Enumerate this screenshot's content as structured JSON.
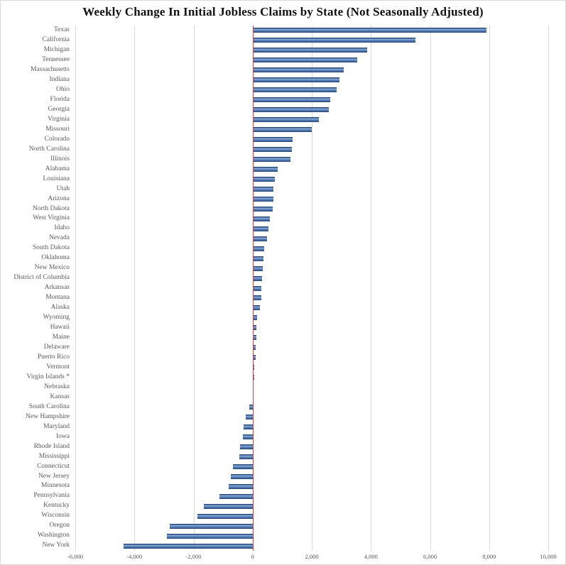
{
  "chart": {
    "title": "Weekly Change In Initial Jobless Claims by State (Not Seasonally Adjusted)"
  },
  "chart_data": {
    "type": "bar",
    "orientation": "horizontal",
    "title": "Weekly Change In Initial Jobless Claims by State (Not Seasonally Adjusted)",
    "xlabel": "",
    "ylabel": "",
    "xlim": [
      -6000,
      10000
    ],
    "x_ticks": [
      -6000,
      -4000,
      -2000,
      0,
      2000,
      4000,
      6000,
      8000,
      10000
    ],
    "x_tick_labels": [
      "-6,000",
      "-4,000",
      "-2,000",
      "0",
      "2,000",
      "4,000",
      "6,000",
      "8,000",
      "10,000"
    ],
    "grid": "vertical-gridlines-on",
    "legend": "none",
    "zero_line_color": "#e83a3a",
    "bar_fill_color": "#4f7ab8",
    "bar_edge_color": "#2c4d7d",
    "gridline_color": "#d9d9d9",
    "label_color": "#595959",
    "categories": [
      "Texas",
      "California",
      "Michigan",
      "Tennessee",
      "Massachusetts",
      "Indiana",
      "Ohio",
      "Florida",
      "Georgia",
      "Virginia",
      "Missouri",
      "Colorado",
      "North Carolina",
      "Illinois",
      "Alabama",
      "Louisiana",
      "Utah",
      "Arizona",
      "North Dakota",
      "West Virginia",
      "Idaho",
      "Nevada",
      "South Dakota",
      "Oklahoma",
      "New Mexico",
      "District of Columbia",
      "Arkansas",
      "Montana",
      "Alaska",
      "Wyoming",
      "Hawaii",
      "Maine",
      "Delaware",
      "Puerto Rico",
      "Vermont",
      "Virgin Islands *",
      "Nebraska",
      "Kansas",
      "South Carolina",
      "New Hampshire",
      "Maryland",
      "Iowa",
      "Rhode Island",
      "Mississippi",
      "Connecticut",
      "New Jersey",
      "Minnesota",
      "Pennsylvania",
      "Kentucky",
      "Wisconsin",
      "Oregon",
      "Washington",
      "New York"
    ],
    "values": [
      7900,
      5500,
      3870,
      3530,
      3090,
      2930,
      2840,
      2630,
      2580,
      2250,
      2010,
      1340,
      1320,
      1270,
      850,
      760,
      710,
      700,
      680,
      590,
      540,
      490,
      400,
      370,
      340,
      320,
      300,
      290,
      250,
      150,
      120,
      115,
      110,
      95,
      60,
      50,
      30,
      10,
      -120,
      -240,
      -300,
      -340,
      -420,
      -460,
      -660,
      -740,
      -800,
      -1130,
      -1660,
      -1860,
      -2800,
      -2900,
      -4370
    ]
  }
}
